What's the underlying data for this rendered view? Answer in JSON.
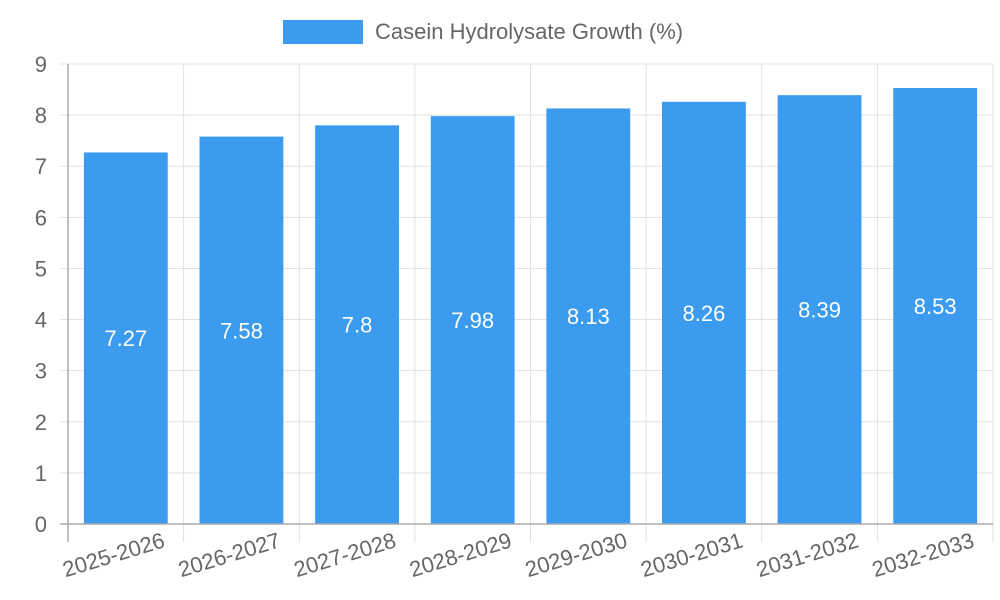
{
  "chart_data": {
    "type": "bar",
    "title": "",
    "categories": [
      "2025-2026",
      "2026-2027",
      "2027-2028",
      "2028-2029",
      "2029-2030",
      "2030-2031",
      "2031-2032",
      "2032-2033"
    ],
    "series": [
      {
        "name": "Casein Hydrolysate Growth (%)",
        "values": [
          7.27,
          7.58,
          7.8,
          7.98,
          8.13,
          8.26,
          8.39,
          8.53
        ],
        "color": "#3a9bef"
      }
    ],
    "data_labels": [
      "7.27",
      "7.58",
      "7.8",
      "7.98",
      "8.13",
      "8.26",
      "8.39",
      "8.53"
    ],
    "xlabel": "",
    "ylabel": "",
    "ylim": [
      0,
      9
    ],
    "yticks": [
      "0",
      "1",
      "2",
      "3",
      "4",
      "5",
      "6",
      "7",
      "8",
      "9"
    ],
    "grid": true,
    "legend_position": "top"
  },
  "legend": {
    "label": "Casein Hydrolysate Growth (%)"
  }
}
